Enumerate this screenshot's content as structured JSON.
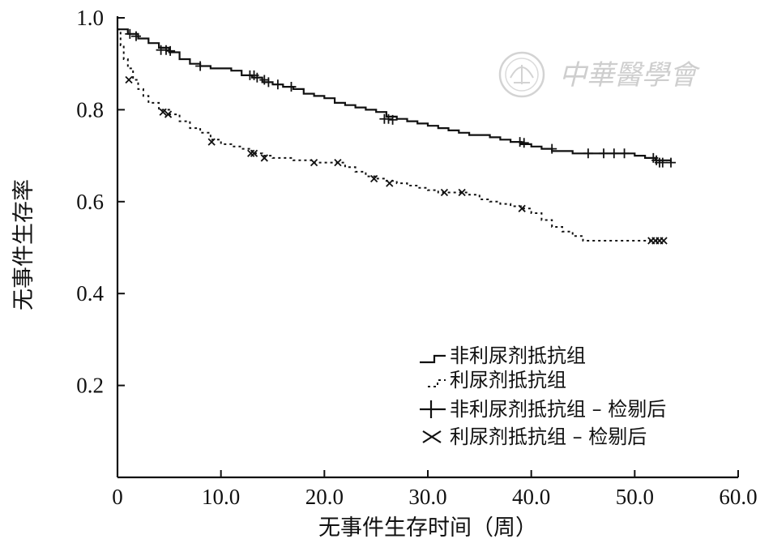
{
  "chart_data": {
    "type": "line",
    "step": true,
    "ylabel": "无事件生存率",
    "xlabel": "无事件生存时间（周）",
    "xlim": [
      0,
      60
    ],
    "ylim": [
      0,
      1.0
    ],
    "xticks": [
      "0",
      "10.0",
      "20.0",
      "30.0",
      "40.0",
      "50.0",
      "60.0"
    ],
    "yticks": [
      "0.2",
      "0.4",
      "0.6",
      "0.8",
      "1.0"
    ],
    "legend_position": "bottom-right",
    "series": [
      {
        "name": "非利尿剂抵抗组",
        "style": "solid",
        "x": [
          0,
          1,
          2,
          3,
          4,
          5,
          6,
          7,
          8,
          9,
          10,
          11,
          12,
          13,
          14,
          15,
          16,
          17,
          18,
          19,
          20,
          21,
          22,
          23,
          24,
          25,
          26,
          27,
          28,
          29,
          30,
          31,
          32,
          33,
          34,
          35,
          36,
          37,
          38,
          39,
          40,
          41,
          42,
          44,
          46,
          48,
          50,
          51,
          52,
          53.5
        ],
        "y": [
          0.975,
          0.965,
          0.955,
          0.945,
          0.935,
          0.925,
          0.91,
          0.9,
          0.895,
          0.89,
          0.89,
          0.885,
          0.875,
          0.87,
          0.86,
          0.855,
          0.85,
          0.845,
          0.835,
          0.83,
          0.825,
          0.815,
          0.81,
          0.805,
          0.8,
          0.795,
          0.785,
          0.78,
          0.775,
          0.77,
          0.765,
          0.76,
          0.755,
          0.75,
          0.745,
          0.745,
          0.74,
          0.735,
          0.73,
          0.725,
          0.72,
          0.715,
          0.71,
          0.705,
          0.705,
          0.705,
          0.7,
          0.695,
          0.69,
          0.685
        ]
      },
      {
        "name": "利尿剂抵抗组",
        "style": "dotted",
        "x": [
          0,
          0.3,
          0.6,
          1,
          1.5,
          2,
          2.5,
          3,
          4,
          5,
          6,
          7,
          8,
          9,
          10,
          11,
          12,
          13,
          14,
          15,
          17,
          19,
          21,
          22,
          23,
          24,
          25,
          26,
          27,
          28,
          29,
          30,
          31,
          32,
          33,
          34,
          35,
          36,
          37,
          38,
          39,
          40,
          41,
          42,
          43,
          44,
          45,
          46,
          48,
          50,
          52.5
        ],
        "y": [
          0.975,
          0.94,
          0.91,
          0.89,
          0.865,
          0.845,
          0.83,
          0.815,
          0.8,
          0.79,
          0.775,
          0.76,
          0.75,
          0.735,
          0.725,
          0.72,
          0.715,
          0.705,
          0.7,
          0.695,
          0.69,
          0.685,
          0.685,
          0.675,
          0.665,
          0.655,
          0.65,
          0.645,
          0.64,
          0.635,
          0.63,
          0.625,
          0.62,
          0.62,
          0.62,
          0.615,
          0.605,
          0.6,
          0.595,
          0.59,
          0.585,
          0.575,
          0.56,
          0.545,
          0.535,
          0.525,
          0.515,
          0.515,
          0.515,
          0.515,
          0.515
        ]
      }
    ],
    "censored": [
      {
        "name": "非利尿剂抵抗组 – 检剔后",
        "marker": "plus",
        "x": [
          1.2,
          1.8,
          4.2,
          4.7,
          5.1,
          8,
          12.8,
          13.2,
          13.5,
          14.2,
          14.6,
          15.5,
          16.8,
          25.8,
          26.2,
          26.6,
          38.9,
          39.3,
          42,
          45.5,
          47,
          48,
          49,
          51.8,
          52.1,
          52.4,
          52.7,
          53.5
        ],
        "y": [
          0.965,
          0.96,
          0.93,
          0.93,
          0.928,
          0.895,
          0.875,
          0.875,
          0.87,
          0.865,
          0.86,
          0.855,
          0.85,
          0.78,
          0.78,
          0.778,
          0.73,
          0.728,
          0.715,
          0.705,
          0.705,
          0.705,
          0.705,
          0.695,
          0.69,
          0.685,
          0.685,
          0.685
        ]
      },
      {
        "name": "利尿剂抵抗组 – 检剔后",
        "marker": "cross",
        "x": [
          1.1,
          4.4,
          4.9,
          9.1,
          12.9,
          13.2,
          14.2,
          19,
          21.3,
          24.8,
          26.3,
          31.6,
          33.3,
          39.1,
          51.6,
          52.0,
          52.4,
          52.8
        ],
        "y": [
          0.865,
          0.795,
          0.79,
          0.73,
          0.705,
          0.705,
          0.695,
          0.685,
          0.685,
          0.65,
          0.64,
          0.62,
          0.62,
          0.585,
          0.515,
          0.515,
          0.515,
          0.515
        ]
      }
    ]
  },
  "watermark": {
    "text": "中華醫學會"
  }
}
